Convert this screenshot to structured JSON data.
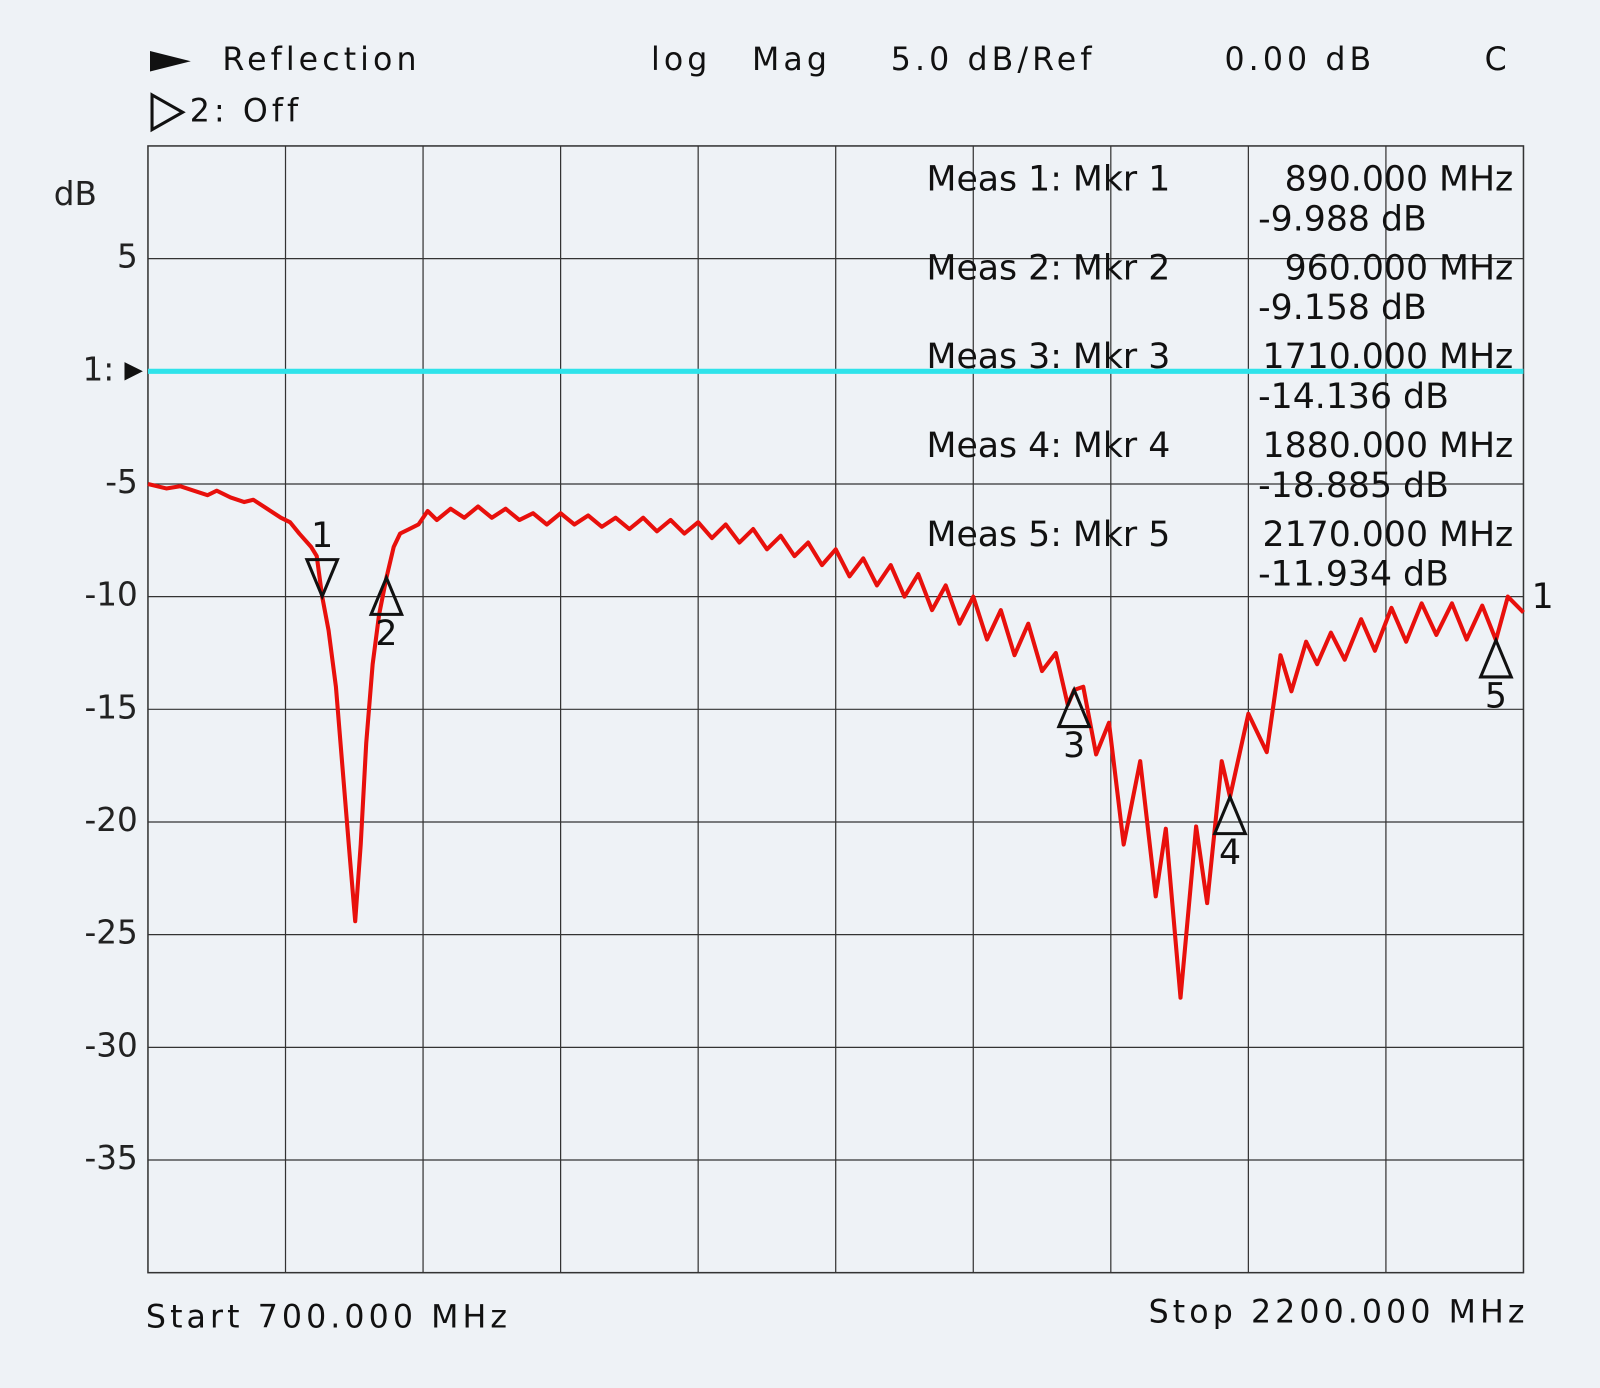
{
  "chart_data": {
    "type": "line",
    "channel_title": "Reflection",
    "format": [
      "log",
      "Mag"
    ],
    "scale": "5.0 dB/Ref",
    "reference": "0.00 dB",
    "status": "C",
    "channel2": "2: Off",
    "y_label": "dB",
    "ref_label": "1:",
    "ref_value": 0,
    "ref_color": "#2fe3ea",
    "start_label": "Start 700.000 MHz",
    "stop_label": "Stop 2200.000 MHz",
    "xlim": [
      700,
      2200
    ],
    "ylim": [
      -40,
      10
    ],
    "yticks": [
      5,
      -5,
      -10,
      -15,
      -20,
      -25,
      -30,
      -35
    ],
    "xgrid": [
      850,
      1000,
      1150,
      1300,
      1450,
      1600,
      1750,
      1900,
      2050
    ],
    "grid": true,
    "series": [
      {
        "name": "1",
        "color": "#e8100c",
        "x": [
          700,
          720,
          735,
          750,
          765,
          775,
          790,
          805,
          815,
          830,
          845,
          855,
          865,
          878,
          884,
          890,
          897,
          905,
          912,
          920,
          926,
          932,
          938,
          945,
          952,
          960,
          968,
          975,
          985,
          995,
          1005,
          1015,
          1030,
          1045,
          1060,
          1075,
          1090,
          1105,
          1120,
          1135,
          1150,
          1165,
          1180,
          1195,
          1210,
          1225,
          1240,
          1255,
          1270,
          1285,
          1300,
          1315,
          1330,
          1345,
          1360,
          1375,
          1390,
          1405,
          1420,
          1435,
          1450,
          1465,
          1480,
          1495,
          1510,
          1525,
          1540,
          1555,
          1570,
          1585,
          1600,
          1615,
          1630,
          1645,
          1660,
          1675,
          1690,
          1703,
          1710,
          1720,
          1734,
          1748,
          1764,
          1782,
          1799,
          1810,
          1826,
          1843,
          1855,
          1871,
          1880,
          1900,
          1920,
          1935,
          1947,
          1963,
          1975,
          1990,
          2005,
          2023,
          2038,
          2056,
          2072,
          2089,
          2105,
          2122,
          2138,
          2155,
          2170,
          2183,
          2200
        ],
        "values": [
          -5.0,
          -5.2,
          -5.1,
          -5.3,
          -5.5,
          -5.3,
          -5.6,
          -5.8,
          -5.7,
          -6.1,
          -6.5,
          -6.7,
          -7.2,
          -7.8,
          -8.2,
          -9.99,
          -11.5,
          -14.0,
          -17.5,
          -21.5,
          -24.4,
          -21.0,
          -16.5,
          -13.0,
          -10.8,
          -9.16,
          -7.8,
          -7.2,
          -7.0,
          -6.8,
          -6.2,
          -6.6,
          -6.1,
          -6.5,
          -6.0,
          -6.5,
          -6.1,
          -6.6,
          -6.3,
          -6.8,
          -6.3,
          -6.8,
          -6.4,
          -6.9,
          -6.5,
          -7.0,
          -6.5,
          -7.1,
          -6.6,
          -7.2,
          -6.7,
          -7.4,
          -6.8,
          -7.6,
          -7.0,
          -7.9,
          -7.3,
          -8.2,
          -7.6,
          -8.6,
          -7.9,
          -9.1,
          -8.3,
          -9.5,
          -8.6,
          -10.0,
          -9.0,
          -10.6,
          -9.5,
          -11.2,
          -10.0,
          -11.9,
          -10.6,
          -12.6,
          -11.2,
          -13.3,
          -12.5,
          -14.8,
          -14.14,
          -14.0,
          -17.0,
          -15.6,
          -21.0,
          -17.3,
          -23.3,
          -20.3,
          -27.8,
          -20.2,
          -23.6,
          -17.3,
          -18.89,
          -15.2,
          -16.9,
          -12.6,
          -14.2,
          -12.0,
          -13.0,
          -11.6,
          -12.8,
          -11.0,
          -12.4,
          -10.5,
          -12.0,
          -10.3,
          -11.7,
          -10.3,
          -11.9,
          -10.4,
          -11.93,
          -10.0,
          -10.7
        ]
      }
    ],
    "markers": [
      {
        "readout": "Meas 1: Mkr 1",
        "number": "1",
        "freq": 890,
        "freq_label": "890.000 MHz",
        "value": -9.988,
        "value_label": "-9.988 dB",
        "orientation": "down"
      },
      {
        "readout": "Meas 2: Mkr 2",
        "number": "2",
        "freq": 960,
        "freq_label": "960.000 MHz",
        "value": -9.158,
        "value_label": "-9.158 dB",
        "orientation": "up"
      },
      {
        "readout": "Meas 3: Mkr 3",
        "number": "3",
        "freq": 1710,
        "freq_label": "1710.000 MHz",
        "value": -14.136,
        "value_label": "-14.136 dB",
        "orientation": "up"
      },
      {
        "readout": "Meas 4: Mkr 4",
        "number": "4",
        "freq": 1880,
        "freq_label": "1880.000 MHz",
        "value": -18.885,
        "value_label": "-18.885 dB",
        "orientation": "up"
      },
      {
        "readout": "Meas 5: Mkr 5",
        "number": "5",
        "freq": 2170,
        "freq_label": "2170.000 MHz",
        "value": -11.934,
        "value_label": "-11.934 dB",
        "orientation": "up"
      }
    ]
  }
}
